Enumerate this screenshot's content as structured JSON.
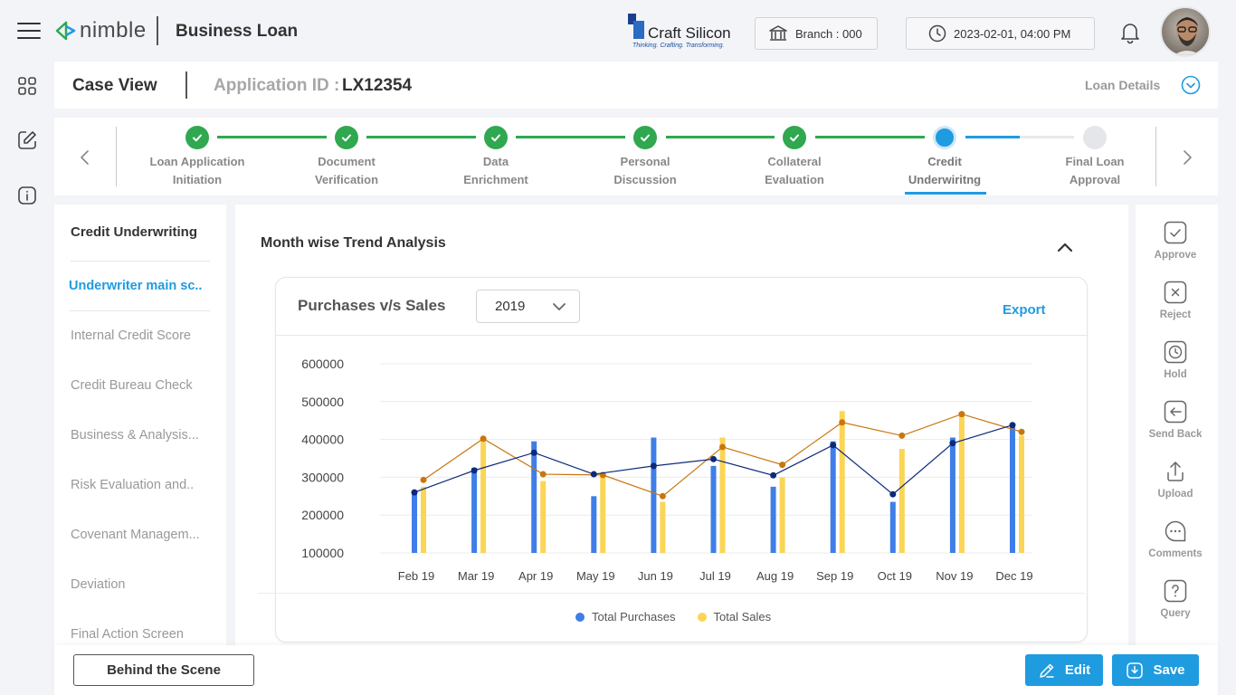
{
  "header": {
    "brand": "nimble",
    "module_title": "Business Loan",
    "partner_logo": {
      "name": "Craft Silicon",
      "tagline": "Thinking. Crafting. Transforming."
    },
    "branch": "Branch : 000",
    "datetime": "2023-02-01, 04:00 PM"
  },
  "case_bar": {
    "title": "Case View",
    "app_id_label": "Application ID :",
    "app_id_value": "LX12354",
    "loan_details": "Loan Details"
  },
  "stepper": {
    "steps": [
      {
        "line1": "Loan Application",
        "line2": "Initiation",
        "status": "done"
      },
      {
        "line1": "Document",
        "line2": "Verification",
        "status": "done"
      },
      {
        "line1": "Data",
        "line2": "Enrichment",
        "status": "done"
      },
      {
        "line1": "Personal",
        "line2": "Discussion",
        "status": "done"
      },
      {
        "line1": "Collateral",
        "line2": "Evaluation",
        "status": "done"
      },
      {
        "line1": "Credit",
        "line2": "Underwiritng",
        "status": "current"
      },
      {
        "line1": "Final Loan",
        "line2": "Approval",
        "status": "pending"
      }
    ]
  },
  "left_nav": {
    "heading": "Credit Underwriting",
    "items": [
      {
        "label": "Underwriter main sc..",
        "active": true
      },
      {
        "label": "Internal Credit Score"
      },
      {
        "label": "Credit Bureau Check"
      },
      {
        "label": "Business & Analysis..."
      },
      {
        "label": "Risk Evaluation and.."
      },
      {
        "label": "Covenant Managem..."
      },
      {
        "label": "Deviation"
      },
      {
        "label": "Final Action Screen"
      }
    ]
  },
  "main": {
    "section_title": "Month wise Trend Analysis",
    "card_title": "Purchases v/s Sales",
    "year_selected": "2019",
    "export_label": "Export"
  },
  "chart_data": {
    "type": "bar",
    "categories": [
      "Feb 19",
      "Mar 19",
      "Apr 19",
      "May 19",
      "Jun 19",
      "Jul 19",
      "Aug 19",
      "Sep 19",
      "Oct 19",
      "Nov 19",
      "Dec 19"
    ],
    "y_ticks": [
      "600000",
      "500000",
      "400000",
      "300000",
      "200000",
      "100000"
    ],
    "ylim": [
      100000,
      600000
    ],
    "series": [
      {
        "name": "Total Purchases",
        "color": "#3f7ee8",
        "line_color": "#0d2a7a",
        "values": [
          265000,
          325000,
          395000,
          250000,
          405000,
          330000,
          275000,
          395000,
          235000,
          405000,
          435000
        ],
        "line_values": [
          260000,
          318000,
          365000,
          308000,
          330000,
          348000,
          305000,
          385000,
          255000,
          390000,
          438000
        ]
      },
      {
        "name": "Total Sales",
        "color": "#fbd555",
        "line_color": "#c8760e",
        "values": [
          275000,
          400000,
          290000,
          310000,
          235000,
          405000,
          300000,
          475000,
          375000,
          465000,
          410000
        ],
        "line_values": [
          293000,
          402000,
          308000,
          306000,
          250000,
          380000,
          333000,
          445000,
          410000,
          467000,
          420000
        ]
      }
    ],
    "grid": true,
    "legend_position": "bottom-center"
  },
  "right_actions": [
    {
      "label": "Approve",
      "icon": "approve-icon"
    },
    {
      "label": "Reject",
      "icon": "reject-icon"
    },
    {
      "label": "Hold",
      "icon": "hold-icon"
    },
    {
      "label": "Send Back",
      "icon": "send-back-icon"
    },
    {
      "label": "Upload",
      "icon": "upload-icon"
    },
    {
      "label": "Comments",
      "icon": "comments-icon"
    },
    {
      "label": "Query",
      "icon": "query-icon"
    }
  ],
  "bottom": {
    "behind_label": "Behind the Scene",
    "edit_label": "Edit",
    "save_label": "Save"
  },
  "colors": {
    "accent": "#1f9be0",
    "success": "#2fa84f"
  }
}
